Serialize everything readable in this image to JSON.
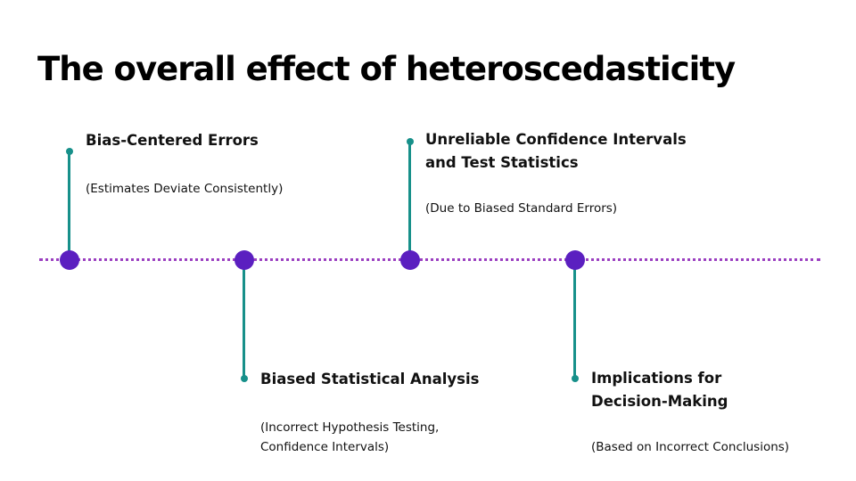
{
  "slide": {
    "title": "The overall effect of heteroscedasticity"
  },
  "timeline": {
    "colors": {
      "dotted_line": "#9b3fc0",
      "node": "#5b1fc0",
      "stem": "#17908a"
    },
    "items": [
      {
        "heading": "Bias-Centered Errors",
        "description": "(Estimates Deviate Consistently)",
        "position": "above"
      },
      {
        "heading": "Biased Statistical Analysis",
        "description": "(Incorrect Hypothesis Testing,\nConfidence Intervals)",
        "position": "below"
      },
      {
        "heading": "Unreliable Confidence Intervals\nand Test Statistics",
        "description": "(Due to Biased Standard Errors)",
        "position": "above"
      },
      {
        "heading": "Implications for\nDecision-Making",
        "description": "(Based on Incorrect Conclusions)",
        "position": "below"
      }
    ]
  }
}
